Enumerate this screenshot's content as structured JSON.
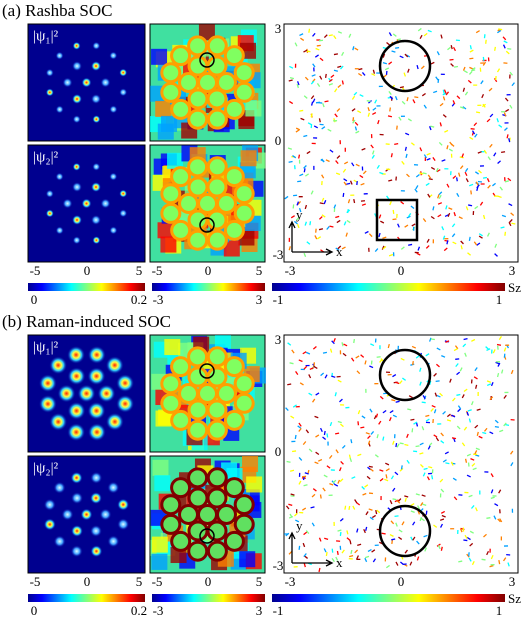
{
  "sections": [
    {
      "title": "(a) Rashba SOC",
      "density_labels": [
        "|ψ₁|²",
        "|ψ₂|²"
      ],
      "density_ticks": [
        "-5",
        "0",
        "5"
      ],
      "phase_ticks": [
        "-5",
        "0",
        "5"
      ],
      "spin_xticks": [
        "-3",
        "0",
        "3"
      ],
      "spin_yticks": [
        "3",
        "0",
        "-3"
      ],
      "axis_x": "x",
      "axis_y": "y",
      "colorbars": [
        {
          "min": "0",
          "max": "0.2"
        },
        {
          "min": "-3",
          "max": "3"
        },
        {
          "min": "-1",
          "max": "1",
          "label": "Sz"
        }
      ]
    },
    {
      "title": "(b) Raman-induced SOC",
      "density_labels": [
        "|ψ₁|²",
        "|ψ₂|²"
      ],
      "density_ticks": [
        "-5",
        "0",
        "5"
      ],
      "phase_ticks": [
        "-5",
        "0",
        "5"
      ],
      "spin_xticks": [
        "-3",
        "0",
        "3"
      ],
      "spin_yticks": [
        "3",
        "0",
        "-3"
      ],
      "axis_x": "x",
      "axis_y": "y",
      "colorbars": [
        {
          "min": "0",
          "max": "0.2"
        },
        {
          "min": "-3",
          "max": "3"
        },
        {
          "min": "-1",
          "max": "1",
          "label": "Sz"
        }
      ]
    }
  ]
}
